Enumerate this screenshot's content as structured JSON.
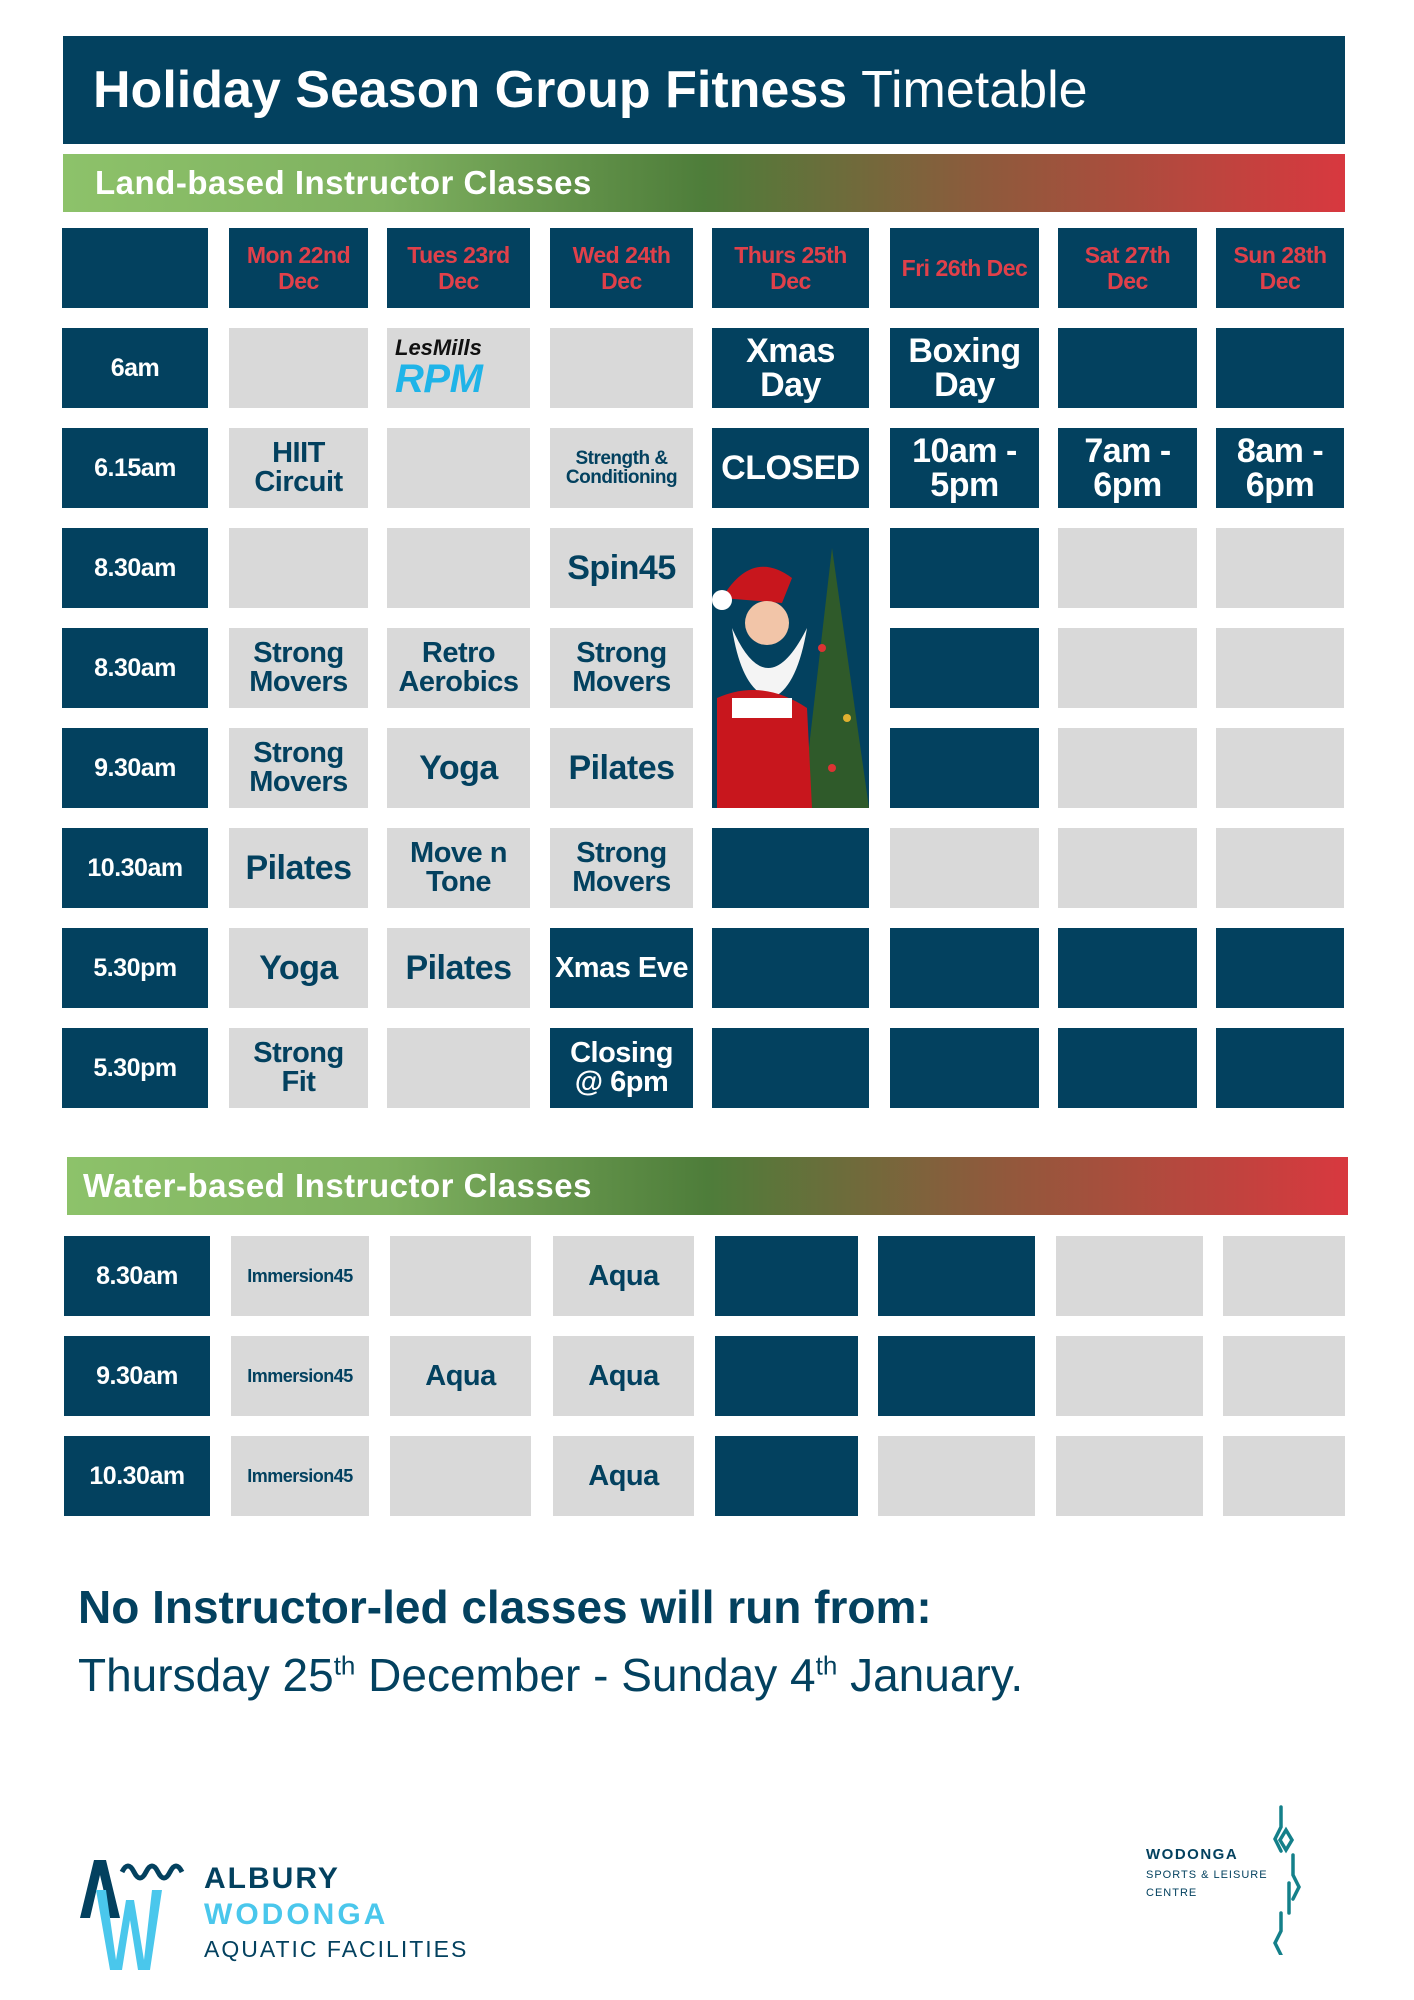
{
  "title": {
    "bold": "Holiday Season Group Fitness",
    "light": "Timetable"
  },
  "colors": {
    "dark": "#03415f",
    "light": "#d9d9d9",
    "day_header_text": "#e0404a",
    "accent_blue": "#4ac7ec"
  },
  "land": {
    "heading": "Land-based Instructor Classes",
    "days": [
      "Mon 22nd Dec",
      "Tues 23rd Dec",
      "Wed 24th Dec",
      "Thurs 25th Dec",
      "Fri 26th Dec",
      "Sat 27th Dec",
      "Sun 28th Dec"
    ],
    "rows": [
      {
        "time": "6am",
        "cells": [
          {
            "s": "light",
            "t": ""
          },
          {
            "s": "light",
            "t": "",
            "logo": "lesmills-rpm"
          },
          {
            "s": "light",
            "t": ""
          },
          {
            "s": "dark",
            "t": "Xmas Day",
            "z": "l"
          },
          {
            "s": "dark",
            "t": "Boxing Day",
            "z": "l"
          },
          {
            "s": "dark",
            "t": ""
          },
          {
            "s": "dark",
            "t": ""
          }
        ]
      },
      {
        "time": "6.15am",
        "cells": [
          {
            "s": "light",
            "t": "HIIT Circuit",
            "z": "m"
          },
          {
            "s": "light",
            "t": ""
          },
          {
            "s": "light",
            "t": "Strength & Conditioning",
            "z": "s"
          },
          {
            "s": "dark",
            "t": "CLOSED",
            "z": "l"
          },
          {
            "s": "dark",
            "t": "10am - 5pm",
            "z": "l"
          },
          {
            "s": "dark",
            "t": "7am - 6pm",
            "z": "l"
          },
          {
            "s": "dark",
            "t": "8am - 6pm",
            "z": "l"
          }
        ]
      },
      {
        "time": "8.30am",
        "cells": [
          {
            "s": "light",
            "t": ""
          },
          {
            "s": "light",
            "t": ""
          },
          {
            "s": "light",
            "t": "Spin45",
            "z": "l"
          },
          {
            "s": "santa",
            "t": ""
          },
          {
            "s": "dark",
            "t": ""
          },
          {
            "s": "light",
            "t": ""
          },
          {
            "s": "light",
            "t": ""
          }
        ]
      },
      {
        "time": "8.30am",
        "cells": [
          {
            "s": "light",
            "t": "Strong Movers",
            "z": "m"
          },
          {
            "s": "light",
            "t": "Retro Aerobics",
            "z": "m"
          },
          {
            "s": "light",
            "t": "Strong Movers",
            "z": "m"
          },
          {
            "s": "santa",
            "t": ""
          },
          {
            "s": "dark",
            "t": ""
          },
          {
            "s": "light",
            "t": ""
          },
          {
            "s": "light",
            "t": ""
          }
        ]
      },
      {
        "time": "9.30am",
        "cells": [
          {
            "s": "light",
            "t": "Strong Movers",
            "z": "m"
          },
          {
            "s": "light",
            "t": "Yoga",
            "z": "l"
          },
          {
            "s": "light",
            "t": "Pilates",
            "z": "l"
          },
          {
            "s": "santa",
            "t": ""
          },
          {
            "s": "dark",
            "t": ""
          },
          {
            "s": "light",
            "t": ""
          },
          {
            "s": "light",
            "t": ""
          }
        ]
      },
      {
        "time": "10.30am",
        "cells": [
          {
            "s": "light",
            "t": "Pilates",
            "z": "l"
          },
          {
            "s": "light",
            "t": "Move n Tone",
            "z": "m"
          },
          {
            "s": "light",
            "t": "Strong Movers",
            "z": "m"
          },
          {
            "s": "dark",
            "t": ""
          },
          {
            "s": "light",
            "t": ""
          },
          {
            "s": "light",
            "t": ""
          },
          {
            "s": "light",
            "t": ""
          }
        ]
      },
      {
        "time": "5.30pm",
        "cells": [
          {
            "s": "light",
            "t": "Yoga",
            "z": "l"
          },
          {
            "s": "light",
            "t": "Pilates",
            "z": "l"
          },
          {
            "s": "dark",
            "t": "Xmas Eve",
            "z": "m"
          },
          {
            "s": "dark",
            "t": ""
          },
          {
            "s": "dark",
            "t": ""
          },
          {
            "s": "dark",
            "t": ""
          },
          {
            "s": "dark",
            "t": ""
          }
        ]
      },
      {
        "time": "5.30pm",
        "cells": [
          {
            "s": "light",
            "t": "Strong Fit",
            "z": "m"
          },
          {
            "s": "light",
            "t": ""
          },
          {
            "s": "dark",
            "t": "Closing @ 6pm",
            "z": "m"
          },
          {
            "s": "dark",
            "t": ""
          },
          {
            "s": "dark",
            "t": ""
          },
          {
            "s": "dark",
            "t": ""
          },
          {
            "s": "dark",
            "t": ""
          }
        ]
      }
    ]
  },
  "rpm_logo": {
    "top": "LesMills",
    "bottom": "RPM"
  },
  "water": {
    "heading": "Water-based Instructor Classes",
    "rows": [
      {
        "time": "8.30am",
        "cells": [
          {
            "s": "light",
            "t": "Immersion45",
            "z": "xs"
          },
          {
            "s": "light",
            "t": ""
          },
          {
            "s": "light",
            "t": "Aqua",
            "z": "m"
          },
          {
            "s": "dark",
            "t": ""
          },
          {
            "s": "dark",
            "t": ""
          },
          {
            "s": "light",
            "t": ""
          },
          {
            "s": "light",
            "t": ""
          }
        ]
      },
      {
        "time": "9.30am",
        "cells": [
          {
            "s": "light",
            "t": "Immersion45",
            "z": "xs"
          },
          {
            "s": "light",
            "t": "Aqua",
            "z": "m"
          },
          {
            "s": "light",
            "t": "Aqua",
            "z": "m"
          },
          {
            "s": "dark",
            "t": ""
          },
          {
            "s": "dark",
            "t": ""
          },
          {
            "s": "light",
            "t": ""
          },
          {
            "s": "light",
            "t": ""
          }
        ]
      },
      {
        "time": "10.30am",
        "cells": [
          {
            "s": "light",
            "t": "Immersion45",
            "z": "xs"
          },
          {
            "s": "light",
            "t": ""
          },
          {
            "s": "light",
            "t": "Aqua",
            "z": "m"
          },
          {
            "s": "dark",
            "t": ""
          },
          {
            "s": "light",
            "t": ""
          },
          {
            "s": "light",
            "t": ""
          },
          {
            "s": "light",
            "t": ""
          }
        ]
      }
    ]
  },
  "notice": {
    "line1": "No Instructor-led classes will run from:",
    "line2_a": "Thursday 25",
    "sup1": "th",
    "line2_b": " December - Sunday 4",
    "sup2": "th",
    "line2_c": " January."
  },
  "logos": {
    "albury": {
      "line1": "ALBURY",
      "line2": "WODONGA",
      "line3": "AQUATIC FACILITIES"
    },
    "wodonga": {
      "line1": "WODONGA",
      "line2": "SPORTS & LEISURE",
      "line3": "CENTRE"
    }
  }
}
